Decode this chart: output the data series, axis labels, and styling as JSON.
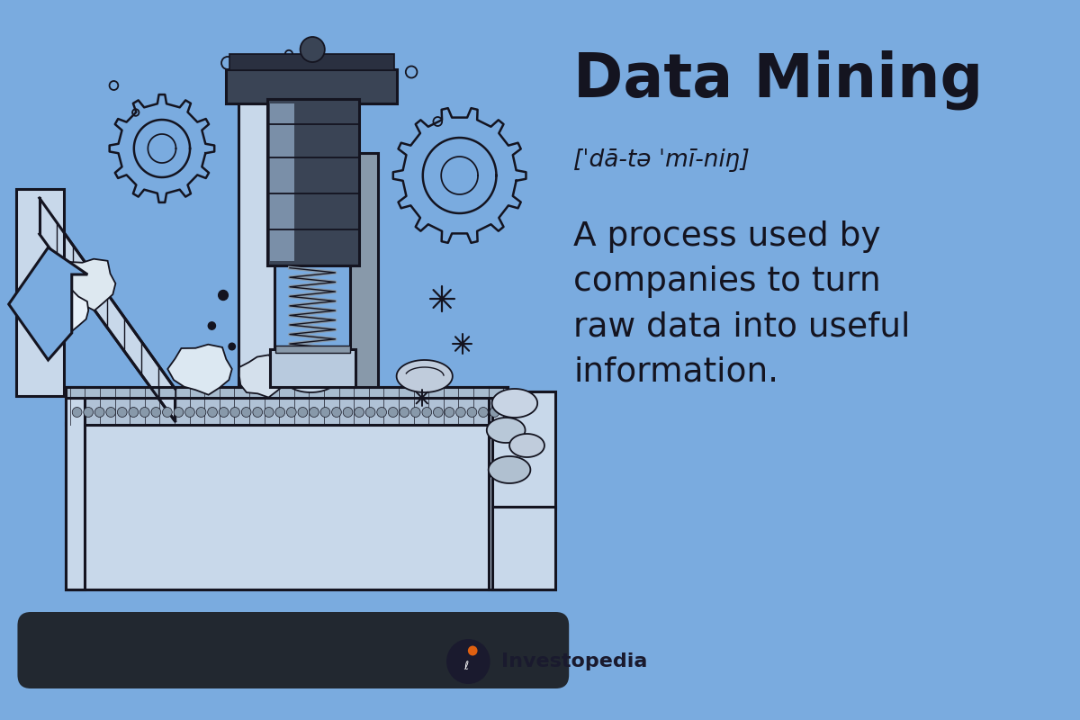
{
  "bg_color": "#7aabdf",
  "title": "Data Mining",
  "phonetic": "[ˈdā-tə ˈmī-niŋ]",
  "definition": "A process used by\ncompanies to turn\nraw data into useful\ninformation.",
  "title_fontsize": 48,
  "phonetic_fontsize": 19,
  "definition_fontsize": 27,
  "text_color": "#141420",
  "logo_text": "Investopedia",
  "machine_light": "#c8d8ea",
  "machine_mid": "#8899aa",
  "machine_dark": "#3a4455",
  "outline": "#141420",
  "belt_bg": "#c0d0e0",
  "base_dark": "#2a2f3a",
  "gear_fill": "#7aabdf",
  "sparkle_color": "#141420"
}
